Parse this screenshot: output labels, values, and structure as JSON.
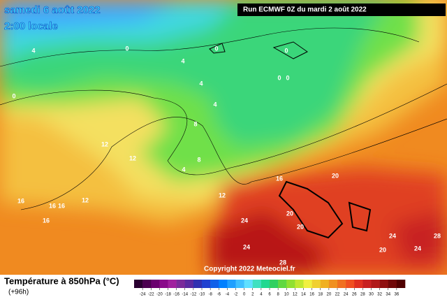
{
  "header": {
    "title": "samedi 6 août 2022",
    "subtitle": "2:00 locale",
    "run": "Run ECMWF 0Z du mardi 2 août 2022"
  },
  "copyright": "Copyright 2022 Meteociel.fr",
  "legend": {
    "title": "Température à 850hPa (°C)",
    "lead": "(+96h)",
    "colors": [
      "#2a0030",
      "#4b0050",
      "#6a006e",
      "#8a0a8a",
      "#a0209e",
      "#7a2a9a",
      "#5a2aa0",
      "#3030b0",
      "#2040d0",
      "#1060e8",
      "#0080ff",
      "#20a0ff",
      "#40c0ff",
      "#60e0ff",
      "#40e0c0",
      "#20d890",
      "#30d060",
      "#60d840",
      "#90e030",
      "#c0e830",
      "#f0f040",
      "#f0d030",
      "#f0b020",
      "#f09020",
      "#f07020",
      "#f05020",
      "#e03020",
      "#c82020",
      "#b01818",
      "#901010",
      "#700808",
      "#500000"
    ],
    "ticks": [
      -24,
      -22,
      -20,
      -18,
      -16,
      -14,
      -12,
      -10,
      -8,
      -6,
      -4,
      -2,
      0,
      2,
      4,
      6,
      8,
      10,
      12,
      14,
      16,
      18,
      20,
      22,
      24,
      26,
      28,
      30,
      32,
      34,
      36
    ]
  },
  "contour_labels": [
    0,
    0,
    0,
    0,
    0,
    0,
    4,
    4,
    4,
    4,
    4,
    8,
    8,
    12,
    12,
    12,
    12,
    16,
    16,
    16,
    16,
    16,
    20,
    20,
    20,
    20,
    24,
    24,
    24,
    24,
    28,
    28
  ]
}
